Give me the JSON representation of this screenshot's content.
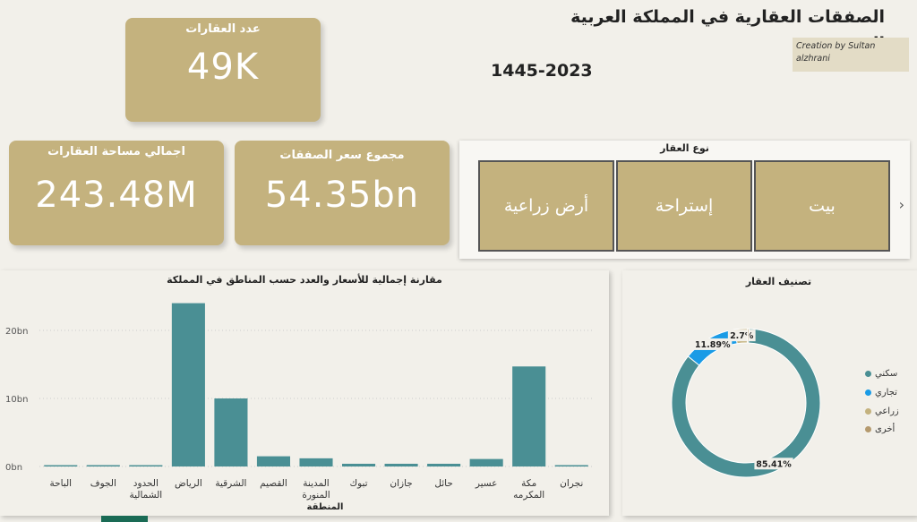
{
  "header": {
    "title_line1": "الصفقات العقارية في المملكة العربية السعودية",
    "title_line2": "1445-2023",
    "credit": "Creation by Sultan alzhrani"
  },
  "cards": {
    "count": {
      "label": "عدد العقارات",
      "value": "49K"
    },
    "area": {
      "label": "اجمالي مساحة العقارات",
      "value": "243.48M"
    },
    "price": {
      "label": "مجموع سعر الصفقات",
      "value": "54.35bn"
    }
  },
  "slicer": {
    "title": "نوع العقار",
    "options": [
      "بيت",
      "إستراحة",
      "أرض زراعية"
    ],
    "next_icon": "chevron-right-icon"
  },
  "bar_panel": {
    "title": "مقارنة إجمالية للأسعار والعدد حسب المناطق في المملكة"
  },
  "donut_panel": {
    "title": "تصنيف العقار"
  },
  "colors": {
    "bar": "#4a8f94",
    "card": "#c4b27e",
    "sakani": "#4a8f94",
    "tijari": "#1a9be6",
    "ziraai": "#c4b27e",
    "other": "#b59a6e"
  },
  "chart_data": [
    {
      "type": "bar",
      "title": "مقارنة إجمالية للأسعار والعدد حسب المناطق في المملكة",
      "xlabel": "المنطقة",
      "ylabel": "",
      "categories": [
        "الباحة",
        "الجوف",
        "الحدود الشمالية",
        "الرياض",
        "الشرقية",
        "القصيم",
        "المدينة المنورة",
        "تبوك",
        "جازان",
        "حائل",
        "عسير",
        "مكة المكرمه",
        "نجران"
      ],
      "values": [
        0.1,
        0.2,
        0.1,
        24.0,
        10.0,
        1.5,
        1.2,
        0.4,
        0.4,
        0.4,
        1.1,
        14.7,
        0.2
      ],
      "yticks": [
        "0bn",
        "10bn",
        "20bn"
      ],
      "ylim": [
        0,
        25
      ],
      "grid": true
    },
    {
      "type": "pie",
      "title": "تصنيف العقار",
      "donut": true,
      "labels": [
        "سكني",
        "تجاري",
        "زراعي",
        "أخرى"
      ],
      "values": [
        85.41,
        11.89,
        2.7,
        0.3
      ],
      "data_labels": [
        "85.41%",
        "11.89%",
        "2.7%",
        ""
      ],
      "legend": "right"
    }
  ]
}
